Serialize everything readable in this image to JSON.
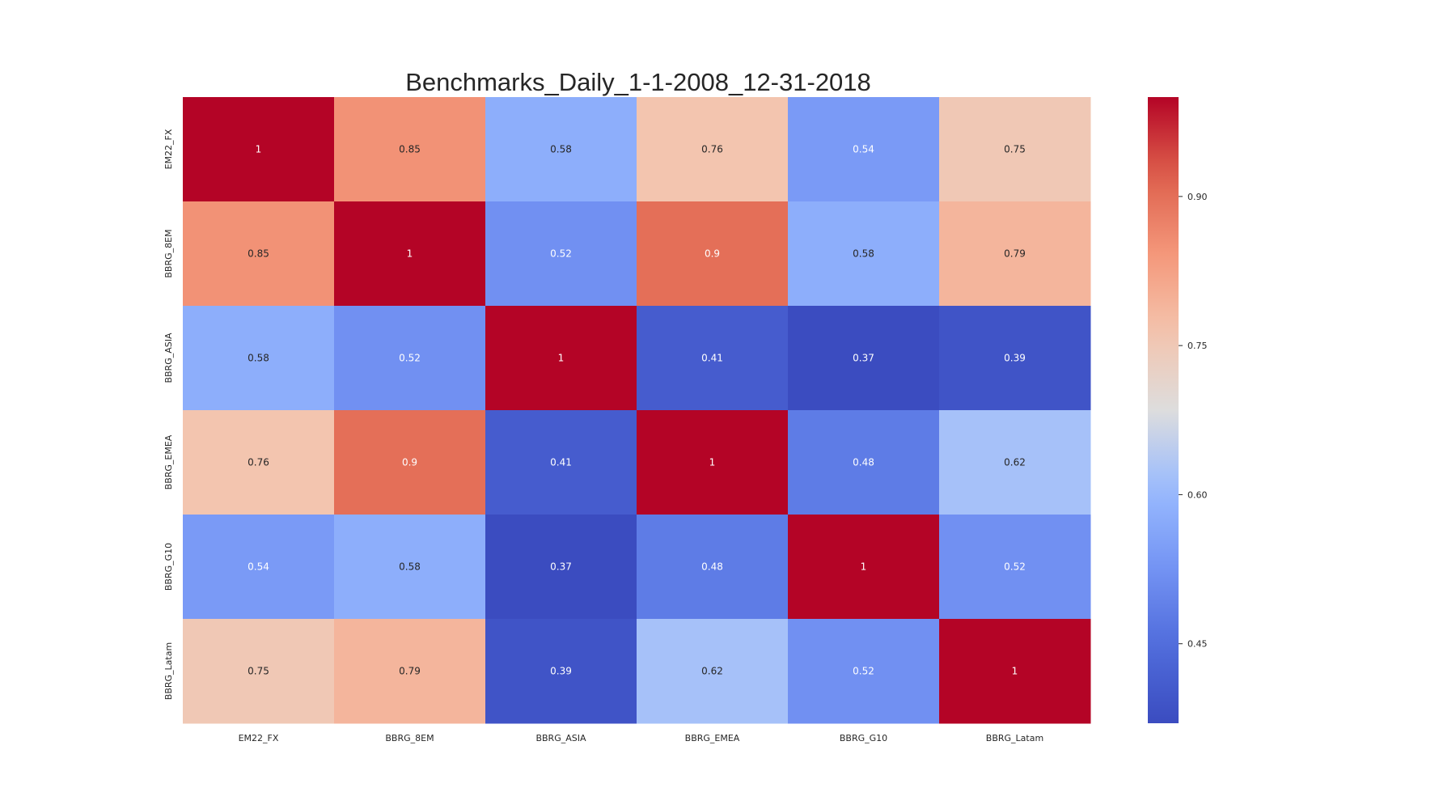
{
  "chart_data": {
    "type": "heatmap",
    "title": "Benchmarks_Daily_1-1-2008_12-31-2018",
    "x_labels": [
      "EM22_FX",
      "BBRG_8EM",
      "BBRG_ASIA",
      "BBRG_EMEA",
      "BBRG_G10",
      "BBRG_Latam"
    ],
    "y_labels": [
      "EM22_FX",
      "BBRG_8EM",
      "BBRG_ASIA",
      "BBRG_EMEA",
      "BBRG_G10",
      "BBRG_Latam"
    ],
    "values": [
      [
        1,
        0.85,
        0.58,
        0.76,
        0.54,
        0.75
      ],
      [
        0.85,
        1,
        0.52,
        0.9,
        0.58,
        0.79
      ],
      [
        0.58,
        0.52,
        1,
        0.41,
        0.37,
        0.39
      ],
      [
        0.76,
        0.9,
        0.41,
        1,
        0.48,
        0.62
      ],
      [
        0.54,
        0.58,
        0.37,
        0.48,
        1,
        0.52
      ],
      [
        0.75,
        0.79,
        0.39,
        0.62,
        0.52,
        1
      ]
    ],
    "colormap": "coolwarm",
    "vmin": 0.37,
    "vmax": 1,
    "colorbar_ticks": [
      "0.45",
      "0.60",
      "0.75",
      "0.90"
    ],
    "annotations": true
  }
}
